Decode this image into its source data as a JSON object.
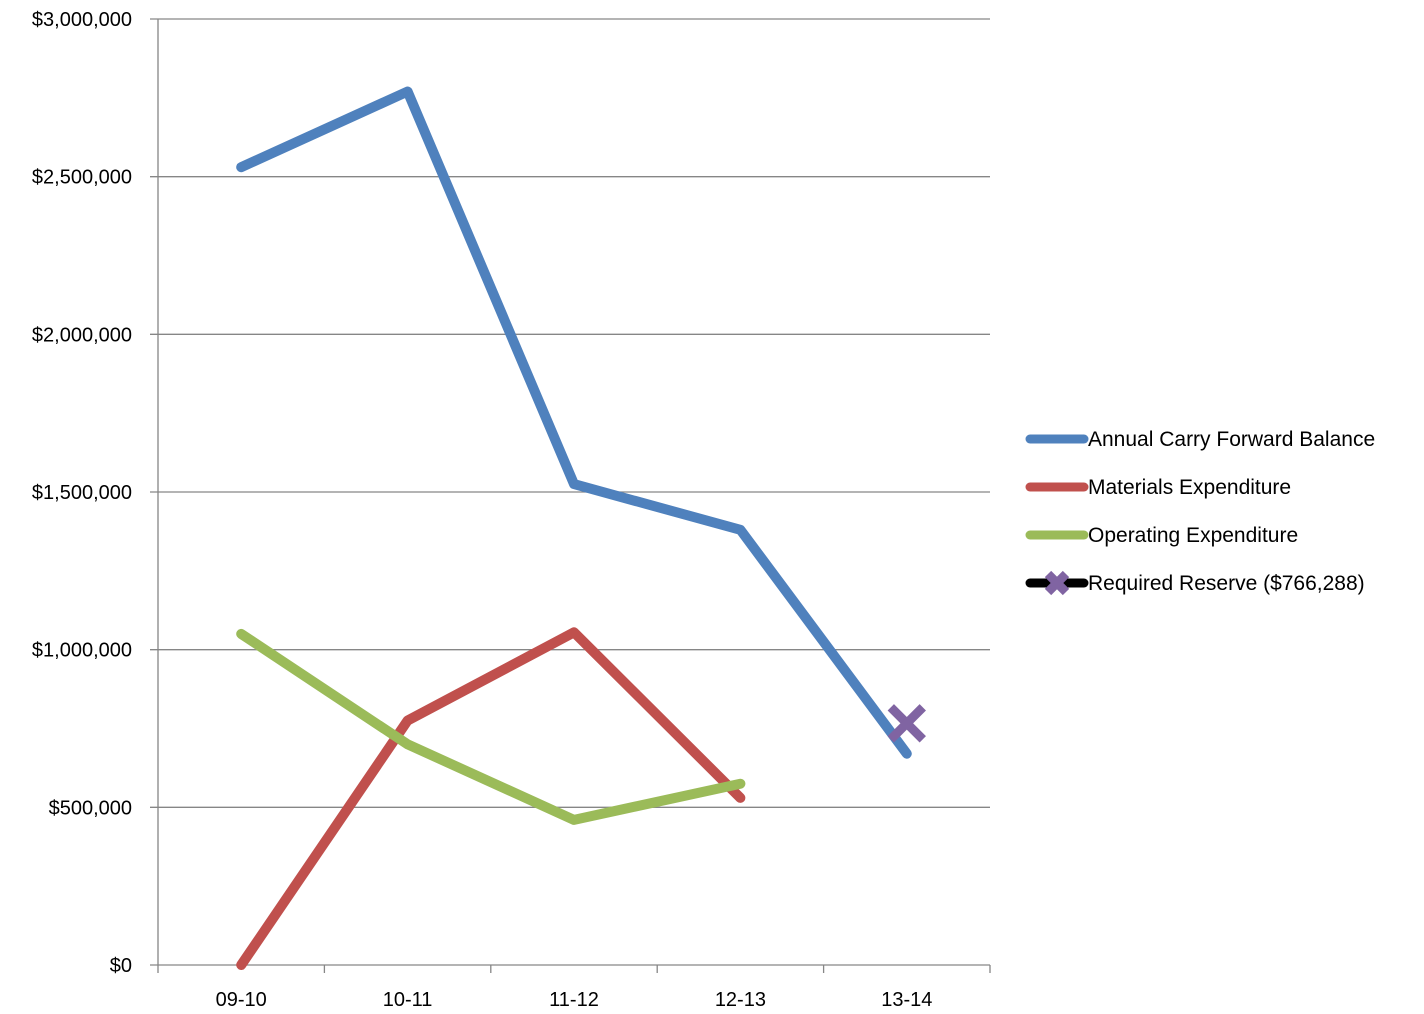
{
  "chart_data": {
    "type": "line",
    "categories": [
      "09-10",
      "10-11",
      "11-12",
      "12-13",
      "13-14"
    ],
    "ylim": [
      0,
      3000000
    ],
    "y_ticks": [
      0,
      500000,
      1000000,
      1500000,
      2000000,
      2500000,
      3000000
    ],
    "y_tick_labels": [
      "$0",
      "$500,000",
      "$1,000,000",
      "$1,500,000",
      "$2,000,000",
      "$2,500,000",
      "$3,000,000"
    ],
    "grid": true,
    "legend_position": "right",
    "series": [
      {
        "name": "Annual Carry Forward Balance",
        "color": "#4F81BD",
        "values": [
          2530000,
          2770000,
          1525000,
          1380000,
          670000
        ]
      },
      {
        "name": "Materials Expenditure",
        "color": "#C0504D",
        "values": [
          0,
          775000,
          1055000,
          530000,
          null
        ]
      },
      {
        "name": "Operating Expenditure",
        "color": "#9BBB59",
        "values": [
          1050000,
          700000,
          460000,
          575000,
          null
        ]
      },
      {
        "name": "Required Reserve ($766,288)",
        "color": "#8064A2",
        "line_color": "#000000",
        "marker": "x-icon",
        "values": [
          null,
          null,
          null,
          null,
          766288
        ]
      }
    ]
  }
}
